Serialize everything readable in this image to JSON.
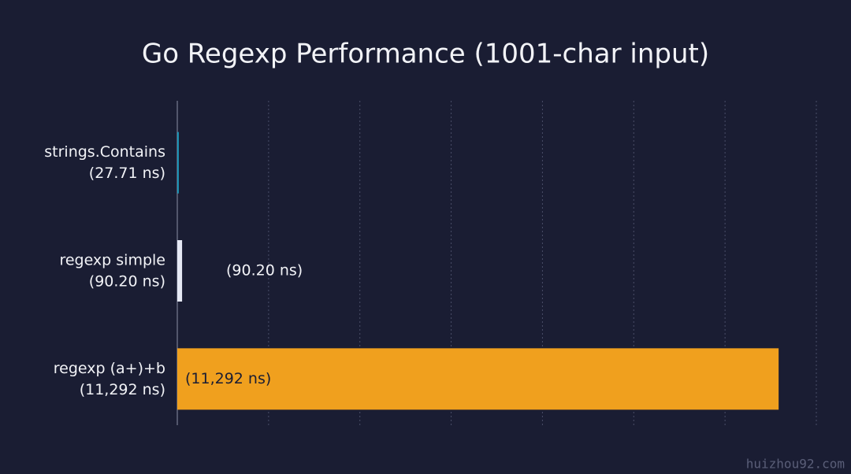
{
  "chart_data": {
    "type": "hbar",
    "title": "Go Regexp Performance (1001-char input)",
    "categories": [
      "strings.Contains",
      "regexp simple",
      "regexp (a+)+b"
    ],
    "values": [
      27.71,
      90.2,
      11292
    ],
    "value_labels": [
      "(27.71 ns)",
      "(90.20 ns)",
      "(11,292 ns)"
    ],
    "colors": [
      "#1b9bbd",
      "#e6e9f5",
      "#f0a01e"
    ],
    "label_position": [
      null,
      "outside",
      "inside"
    ],
    "xlim": [
      0,
      12000
    ],
    "grid": true,
    "watermark": "huizhou92.com"
  }
}
